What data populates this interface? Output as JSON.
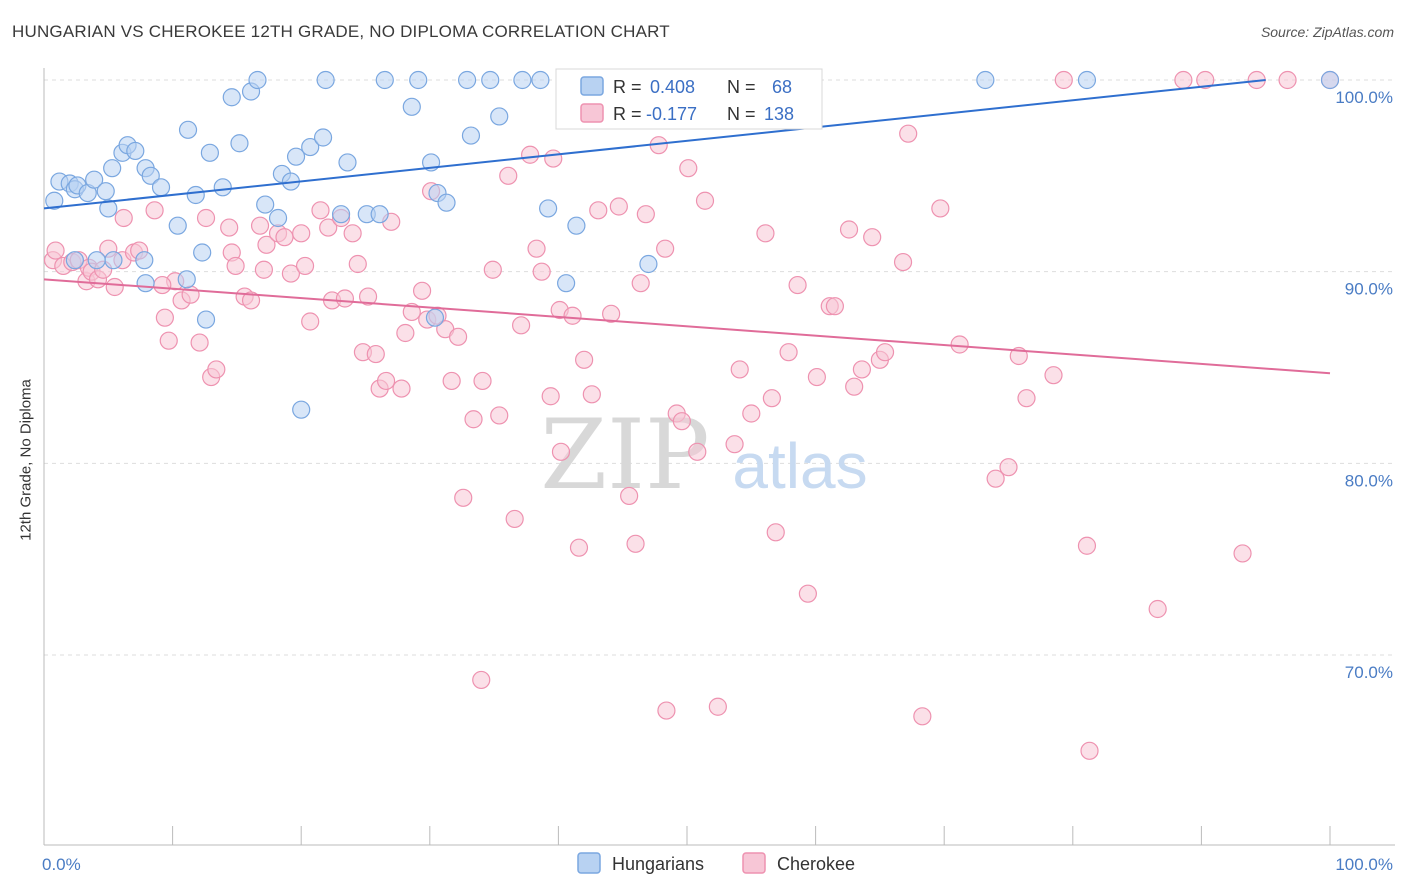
{
  "title": "HUNGARIAN VS CHEROKEE 12TH GRADE, NO DIPLOMA CORRELATION CHART",
  "source": "Source: ZipAtlas.com",
  "watermark": {
    "zip": "ZIP",
    "atlas": "atlas"
  },
  "colors": {
    "blue_fill": "#b8d2f2",
    "blue_stroke": "#7aa7e0",
    "blue_line": "#2f6fcf",
    "pink_fill": "#f7c6d6",
    "pink_stroke": "#ee92b0",
    "pink_line": "#e06c99",
    "tick_text": "#4a7cc4",
    "grid": "#dddddd"
  },
  "legend": {
    "rows": [
      {
        "r_label": "R = ",
        "r_value": "0.408",
        "n_label": "N = ",
        "n_value": "68"
      },
      {
        "r_label": "R = ",
        "r_value": "-0.177",
        "n_label": "N = ",
        "n_value": "138"
      }
    ]
  },
  "chart_data": {
    "type": "scatter",
    "title": "HUNGARIAN VS CHEROKEE 12TH GRADE, NO DIPLOMA CORRELATION CHART",
    "xlabel": "",
    "ylabel": "12th Grade, No Diploma",
    "xlim": [
      0,
      100
    ],
    "ylim": [
      60.5,
      101.5
    ],
    "x_tick_labels": [
      "0.0%",
      "100.0%"
    ],
    "y_ticks": [
      70,
      80,
      90,
      100
    ],
    "y_tick_labels": [
      "70.0%",
      "80.0%",
      "90.0%",
      "100.0%"
    ],
    "grid": true,
    "legend_position": "top-center",
    "series": [
      {
        "name": "Hungarians",
        "trend": {
          "x": [
            0,
            95
          ],
          "y": [
            93.3,
            100
          ]
        },
        "points": [
          [
            0.8,
            93.7
          ],
          [
            1.2,
            94.7
          ],
          [
            2.0,
            94.6
          ],
          [
            2.4,
            94.3
          ],
          [
            2.6,
            94.5
          ],
          [
            3.4,
            94.1
          ],
          [
            3.9,
            94.8
          ],
          [
            4.8,
            94.2
          ],
          [
            5.0,
            93.3
          ],
          [
            5.3,
            95.4
          ],
          [
            6.1,
            96.2
          ],
          [
            6.5,
            96.6
          ],
          [
            7.1,
            96.3
          ],
          [
            7.9,
            95.4
          ],
          [
            8.3,
            95.0
          ],
          [
            9.1,
            94.4
          ],
          [
            10.4,
            92.4
          ],
          [
            11.2,
            97.4
          ],
          [
            11.8,
            94.0
          ],
          [
            12.9,
            96.2
          ],
          [
            13.9,
            94.4
          ],
          [
            14.6,
            99.1
          ],
          [
            15.2,
            96.7
          ],
          [
            16.1,
            99.4
          ],
          [
            16.6,
            100
          ],
          [
            17.2,
            93.5
          ],
          [
            18.2,
            92.8
          ],
          [
            18.5,
            95.1
          ],
          [
            19.2,
            94.7
          ],
          [
            19.6,
            96.0
          ],
          [
            20.7,
            96.5
          ],
          [
            21.7,
            97.0
          ],
          [
            23.1,
            93.0
          ],
          [
            23.6,
            95.7
          ],
          [
            25.1,
            93.0
          ],
          [
            26.1,
            93.0
          ],
          [
            26.5,
            100
          ],
          [
            29.1,
            100
          ],
          [
            30.1,
            95.7
          ],
          [
            30.6,
            94.1
          ],
          [
            32.9,
            100
          ],
          [
            34.7,
            100
          ],
          [
            35.4,
            98.1
          ],
          [
            37.2,
            100
          ],
          [
            38.6,
            100
          ],
          [
            39.2,
            93.3
          ],
          [
            41.4,
            92.4
          ],
          [
            40.9,
            100
          ],
          [
            33.2,
            97.1
          ],
          [
            28.6,
            98.6
          ],
          [
            21.9,
            100
          ],
          [
            7.8,
            90.6
          ],
          [
            5.4,
            90.6
          ],
          [
            11.1,
            89.6
          ],
          [
            12.3,
            91.0
          ],
          [
            12.6,
            87.5
          ],
          [
            4.1,
            90.6
          ],
          [
            2.4,
            90.6
          ],
          [
            7.9,
            89.4
          ],
          [
            20.0,
            82.8
          ],
          [
            30.4,
            87.6
          ],
          [
            31.3,
            93.6
          ],
          [
            40.6,
            89.4
          ],
          [
            47.0,
            90.4
          ],
          [
            52.1,
            100
          ],
          [
            73.2,
            100
          ],
          [
            81.1,
            100
          ],
          [
            100.0,
            100
          ]
        ]
      },
      {
        "name": "Cherokee",
        "trend": {
          "x": [
            0,
            100
          ],
          "y": [
            89.6,
            84.7
          ]
        },
        "points": [
          [
            0.7,
            90.6
          ],
          [
            0.9,
            91.1
          ],
          [
            1.5,
            90.3
          ],
          [
            2.2,
            90.5
          ],
          [
            2.7,
            90.6
          ],
          [
            3.3,
            89.5
          ],
          [
            3.5,
            90.2
          ],
          [
            3.7,
            90.0
          ],
          [
            4.2,
            89.6
          ],
          [
            4.6,
            90.1
          ],
          [
            5.0,
            91.2
          ],
          [
            5.5,
            89.2
          ],
          [
            6.1,
            90.6
          ],
          [
            7.0,
            91.0
          ],
          [
            7.4,
            91.1
          ],
          [
            8.6,
            93.2
          ],
          [
            9.4,
            87.6
          ],
          [
            9.7,
            86.4
          ],
          [
            10.2,
            89.5
          ],
          [
            10.7,
            88.5
          ],
          [
            11.4,
            88.8
          ],
          [
            12.1,
            86.3
          ],
          [
            12.6,
            92.8
          ],
          [
            13.0,
            84.5
          ],
          [
            13.4,
            84.9
          ],
          [
            14.4,
            92.3
          ],
          [
            14.6,
            91.0
          ],
          [
            14.9,
            90.3
          ],
          [
            15.6,
            88.7
          ],
          [
            16.1,
            88.5
          ],
          [
            16.8,
            92.4
          ],
          [
            17.1,
            90.1
          ],
          [
            17.3,
            91.4
          ],
          [
            18.2,
            92.0
          ],
          [
            18.7,
            91.8
          ],
          [
            19.2,
            89.9
          ],
          [
            20.3,
            90.3
          ],
          [
            20.7,
            87.4
          ],
          [
            21.5,
            93.2
          ],
          [
            22.1,
            92.3
          ],
          [
            22.4,
            88.5
          ],
          [
            23.1,
            92.8
          ],
          [
            23.4,
            88.6
          ],
          [
            24.0,
            92.0
          ],
          [
            24.4,
            90.4
          ],
          [
            24.8,
            85.8
          ],
          [
            25.2,
            88.7
          ],
          [
            25.8,
            85.7
          ],
          [
            26.1,
            83.9
          ],
          [
            26.6,
            84.3
          ],
          [
            27.0,
            92.6
          ],
          [
            27.8,
            83.9
          ],
          [
            28.1,
            86.8
          ],
          [
            28.6,
            87.9
          ],
          [
            29.4,
            89.0
          ],
          [
            29.8,
            87.5
          ],
          [
            30.1,
            94.2
          ],
          [
            30.6,
            87.7
          ],
          [
            31.2,
            87.0
          ],
          [
            31.7,
            84.3
          ],
          [
            32.2,
            86.6
          ],
          [
            32.6,
            78.2
          ],
          [
            33.4,
            82.3
          ],
          [
            34.1,
            84.3
          ],
          [
            34.9,
            90.1
          ],
          [
            35.4,
            82.5
          ],
          [
            36.1,
            95.0
          ],
          [
            36.6,
            77.1
          ],
          [
            37.1,
            87.2
          ],
          [
            37.8,
            96.1
          ],
          [
            38.3,
            91.2
          ],
          [
            38.7,
            90.0
          ],
          [
            39.4,
            83.5
          ],
          [
            40.1,
            88.0
          ],
          [
            41.1,
            87.7
          ],
          [
            41.6,
            75.6
          ],
          [
            42.0,
            85.4
          ],
          [
            42.6,
            83.6
          ],
          [
            43.1,
            93.2
          ],
          [
            44.1,
            87.8
          ],
          [
            44.7,
            93.4
          ],
          [
            45.5,
            78.3
          ],
          [
            46.4,
            89.4
          ],
          [
            46.8,
            93.0
          ],
          [
            47.8,
            96.6
          ],
          [
            48.3,
            91.2
          ],
          [
            49.2,
            82.6
          ],
          [
            49.6,
            82.2
          ],
          [
            50.1,
            95.4
          ],
          [
            50.8,
            80.6
          ],
          [
            51.4,
            93.7
          ],
          [
            52.4,
            67.3
          ],
          [
            53.7,
            81.0
          ],
          [
            54.1,
            84.9
          ],
          [
            55.0,
            82.6
          ],
          [
            56.1,
            92.0
          ],
          [
            56.6,
            83.4
          ],
          [
            56.9,
            76.4
          ],
          [
            57.9,
            85.8
          ],
          [
            58.6,
            89.3
          ],
          [
            59.4,
            73.2
          ],
          [
            60.1,
            84.5
          ],
          [
            61.1,
            88.2
          ],
          [
            61.5,
            88.2
          ],
          [
            62.6,
            92.2
          ],
          [
            63.0,
            84.0
          ],
          [
            63.6,
            84.9
          ],
          [
            64.4,
            91.8
          ],
          [
            65.0,
            85.4
          ],
          [
            65.4,
            85.8
          ],
          [
            67.2,
            97.2
          ],
          [
            68.3,
            66.8
          ],
          [
            69.7,
            93.3
          ],
          [
            74.0,
            79.2
          ],
          [
            75.0,
            79.8
          ],
          [
            75.8,
            85.6
          ],
          [
            76.4,
            83.4
          ],
          [
            78.5,
            84.6
          ],
          [
            79.3,
            100
          ],
          [
            81.1,
            75.7
          ],
          [
            81.3,
            65.0
          ],
          [
            86.6,
            72.4
          ],
          [
            88.6,
            100
          ],
          [
            90.3,
            100
          ],
          [
            93.2,
            75.3
          ],
          [
            94.3,
            100
          ],
          [
            96.7,
            100
          ],
          [
            100.0,
            100
          ],
          [
            48.4,
            67.1
          ],
          [
            34.0,
            68.7
          ],
          [
            46.0,
            75.8
          ],
          [
            40.2,
            80.6
          ],
          [
            20.0,
            92.0
          ],
          [
            9.2,
            89.3
          ],
          [
            6.2,
            92.8
          ],
          [
            39.6,
            95.9
          ],
          [
            66.8,
            90.5
          ],
          [
            71.2,
            86.2
          ]
        ]
      }
    ]
  },
  "bottom_legend": {
    "items": [
      {
        "label": "Hungarians"
      },
      {
        "label": "Cherokee"
      }
    ]
  }
}
